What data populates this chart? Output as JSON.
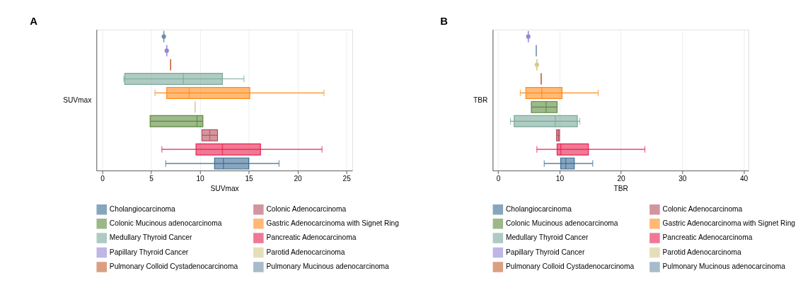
{
  "chart_data": [
    {
      "type": "box",
      "title": "A",
      "xlabel": "SUVmax",
      "ylabel": "SUVmax",
      "orientation": "horizontal",
      "categories": [
        null,
        null,
        null,
        null,
        null,
        null,
        null,
        null,
        null,
        null
      ],
      "xlim": [
        -0.6,
        25.6
      ],
      "xticks": [
        0,
        5,
        10,
        15,
        20,
        25
      ],
      "grid": "x",
      "legend": "bottom",
      "series": [
        {
          "name": "Cholangiocarcinoma",
          "color": "#3a6a94",
          "boxes": [
            null,
            null,
            null,
            null,
            null,
            null,
            null,
            null,
            null,
            {
              "low": 6.5,
              "q1": 11.5,
              "median": 12.4,
              "q3": 15.0,
              "high": 18.1
            }
          ]
        },
        {
          "name": "Colonic Adenocarcinoma",
          "color": "#b5505f",
          "boxes": [
            null,
            null,
            null,
            null,
            null,
            null,
            null,
            {
              "low": 10.2,
              "q1": 10.2,
              "median": 11.0,
              "q3": 11.8,
              "high": 11.8
            },
            null,
            null
          ]
        },
        {
          "name": "Colonic Mucinous adenocarcinoma",
          "color": "#5b8a3c",
          "boxes": [
            null,
            null,
            null,
            null,
            null,
            null,
            {
              "low": 4.9,
              "q1": 4.9,
              "median": 9.7,
              "q3": 10.3,
              "high": 10.3
            },
            null,
            null,
            null
          ]
        },
        {
          "name": "Gastric Adenocarcinoma with Signet Ring",
          "color": "#ff8c1a",
          "boxes": [
            null,
            null,
            null,
            null,
            {
              "low": 5.4,
              "q1": 6.6,
              "median": 8.9,
              "q3": 15.1,
              "high": 22.7
            },
            null,
            null,
            null,
            null,
            null
          ]
        },
        {
          "name": "Medullary Thyroid Cancer",
          "color": "#7aa89a",
          "boxes": [
            null,
            null,
            null,
            {
              "low": 2.2,
              "q1": 2.3,
              "median": 8.3,
              "q3": 12.3,
              "high": 14.5
            },
            null,
            null,
            null,
            null,
            null,
            null
          ]
        },
        {
          "name": "Pancreatic Adenocarcinoma",
          "color": "#e8204f",
          "boxes": [
            null,
            null,
            null,
            null,
            null,
            null,
            null,
            null,
            {
              "low": 6.1,
              "q1": 9.6,
              "median": 12.3,
              "q3": 16.2,
              "high": 22.5
            },
            null
          ]
        },
        {
          "name": "Papillary Thyroid Cancer",
          "color": "#9386d4",
          "boxes": [
            null,
            {
              "low": 6.6,
              "q1": 6.6,
              "median": 6.6,
              "q3": 6.6,
              "high": 6.6,
              "outliers": [
                6.6
              ]
            },
            null,
            null,
            null,
            null,
            null,
            null,
            null,
            null
          ]
        },
        {
          "name": "Parotid Adenocarcinoma",
          "color": "#d4c98a",
          "boxes": [
            null,
            null,
            null,
            null,
            null,
            {
              "low": 9.5,
              "q1": 9.5,
              "median": 9.5,
              "q3": 9.5,
              "high": 9.5
            },
            null,
            null,
            null,
            null
          ]
        },
        {
          "name": "Pulmonary Colloid Cystadenocarcinoma",
          "color": "#c2602f",
          "boxes": [
            null,
            null,
            {
              "low": 7.0,
              "q1": 7.0,
              "median": 7.0,
              "q3": 7.0,
              "high": 7.0
            },
            null,
            null,
            null,
            null,
            null,
            null,
            null
          ]
        },
        {
          "name": "Pulmonary Mucinous adenocarcinoma",
          "color": "#6f8fa8",
          "boxes": [
            {
              "low": 6.3,
              "q1": 6.3,
              "median": 6.3,
              "q3": 6.3,
              "high": 6.3,
              "outliers": [
                6.3
              ]
            },
            null,
            null,
            null,
            null,
            null,
            null,
            null,
            null,
            null
          ]
        }
      ]
    },
    {
      "type": "box",
      "title": "B",
      "xlabel": "TBR",
      "ylabel": "TBR",
      "orientation": "horizontal",
      "categories": [
        null,
        null,
        null,
        null,
        null,
        null,
        null,
        null,
        null,
        null
      ],
      "xlim": [
        -0.9,
        40.8
      ],
      "xticks": [
        0,
        10,
        20,
        30,
        40
      ],
      "grid": "x",
      "legend": "bottom",
      "series": [
        {
          "name": "Cholangiocarcinoma",
          "color": "#3a6a94",
          "boxes": [
            null,
            null,
            null,
            null,
            null,
            null,
            null,
            null,
            null,
            {
              "low": 7.5,
              "q1": 10.2,
              "median": 11.0,
              "q3": 12.4,
              "high": 15.4
            }
          ]
        },
        {
          "name": "Colonic Adenocarcinoma",
          "color": "#b5505f",
          "boxes": [
            null,
            null,
            null,
            null,
            null,
            null,
            null,
            {
              "low": 9.5,
              "q1": 9.5,
              "median": 9.8,
              "q3": 10.0,
              "high": 10.0
            },
            null,
            null
          ]
        },
        {
          "name": "Colonic Mucinous adenocarcinoma",
          "color": "#5b8a3c",
          "boxes": [
            null,
            null,
            null,
            null,
            null,
            {
              "low": 5.4,
              "q1": 5.4,
              "median": 7.8,
              "q3": 9.6,
              "high": 9.6
            },
            null,
            null,
            null,
            null
          ]
        },
        {
          "name": "Gastric Adenocarcinoma with Signet Ring",
          "color": "#ff8c1a",
          "boxes": [
            null,
            null,
            null,
            null,
            {
              "low": 3.6,
              "q1": 4.5,
              "median": 7.1,
              "q3": 10.4,
              "high": 16.3
            },
            null,
            null,
            null,
            null,
            null
          ]
        },
        {
          "name": "Medullary Thyroid Cancer",
          "color": "#7aa89a",
          "boxes": [
            null,
            null,
            null,
            null,
            null,
            null,
            {
              "low": 2.0,
              "q1": 2.6,
              "median": 9.3,
              "q3": 12.9,
              "high": 13.3
            },
            null,
            null,
            null
          ]
        },
        {
          "name": "Pancreatic Adenocarcinoma",
          "color": "#e8204f",
          "boxes": [
            null,
            null,
            null,
            null,
            null,
            null,
            null,
            null,
            {
              "low": 6.3,
              "q1": 9.6,
              "median": 10.2,
              "q3": 14.7,
              "high": 23.9
            },
            null
          ]
        },
        {
          "name": "Papillary Thyroid Cancer",
          "color": "#9386d4",
          "boxes": [
            {
              "low": 4.9,
              "q1": 4.9,
              "median": 4.9,
              "q3": 4.9,
              "high": 4.9,
              "outliers": [
                4.9
              ]
            },
            null,
            null,
            null,
            null,
            null,
            null,
            null,
            null,
            null
          ]
        },
        {
          "name": "Parotid Adenocarcinoma",
          "color": "#d4c98a",
          "boxes": [
            null,
            null,
            {
              "low": 6.3,
              "q1": 6.3,
              "median": 6.3,
              "q3": 6.3,
              "high": 6.3,
              "outliers": [
                6.3
              ]
            },
            null,
            null,
            null,
            null,
            null,
            null,
            null
          ]
        },
        {
          "name": "Pulmonary Colloid Cystadenocarcinoma",
          "color": "#c2602f",
          "boxes": [
            null,
            null,
            null,
            {
              "low": 7.0,
              "q1": 7.0,
              "median": 7.0,
              "q3": 7.0,
              "high": 7.0
            },
            null,
            null,
            null,
            null,
            null,
            null
          ]
        },
        {
          "name": "Pulmonary Mucinous adenocarcinoma",
          "color": "#6f8fa8",
          "boxes": [
            null,
            {
              "low": 6.2,
              "q1": 6.2,
              "median": 6.2,
              "q3": 6.2,
              "high": 6.2
            },
            null,
            null,
            null,
            null,
            null,
            null,
            null,
            null
          ]
        }
      ]
    }
  ]
}
